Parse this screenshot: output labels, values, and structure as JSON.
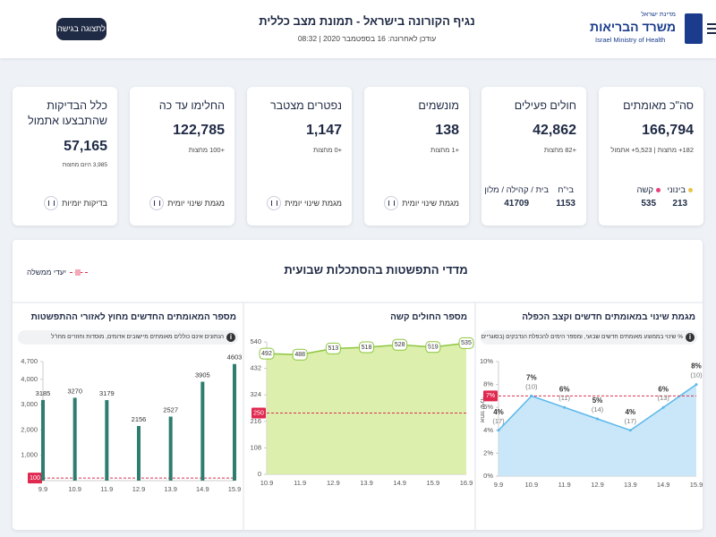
{
  "header": {
    "state": "מדינת ישראל",
    "ministry": "משרד הבריאות",
    "ministry_en": "Israel Ministry of Health",
    "title": "נגיף הקורונה בישראל - תמונת מצב כללית",
    "updated": "עודכן לאחרונה: 16 בספטמבר 2020 | 08:32",
    "button": "לתצוגה בגישה"
  },
  "cards": [
    {
      "title": "סה\"כ מאומתים",
      "value": "166,794",
      "change": "182+ מחצות | 5,523+ אתמול",
      "legend": [
        {
          "label": "בינוני",
          "value": "213"
        },
        {
          "label": "קשה",
          "value": "535"
        }
      ]
    },
    {
      "title": "חולים פעילים",
      "value": "42,862",
      "change": "+82 מחצות",
      "breakdown": [
        {
          "label": "בי\"ח",
          "value": "1153"
        },
        {
          "label": "בית / קהילה / מלון",
          "value": "41709"
        }
      ]
    },
    {
      "title": "מונשמים",
      "value": "138",
      "change": "+1 מחצות",
      "link": "מגמת שינוי יומית"
    },
    {
      "title": "נפטרים מצטבר",
      "value": "1,147",
      "change": "+0 מחצות",
      "link": "מגמת שינוי יומית"
    },
    {
      "title": "החלימו עד כה",
      "value": "122,785",
      "change": "+100 מחצות",
      "link": "מגמת שינוי יומית"
    },
    {
      "title": "כלל הבדיקות שהתבצעו אתמול",
      "value": "57,165",
      "change": "3,985 היום מחצות",
      "link": "בדיקות יומיות"
    }
  ],
  "section": {
    "title": "מדדי התפשטות בהסתכלות שבועית",
    "legend": "יעדי ממשלה"
  },
  "chart_data": [
    {
      "type": "line",
      "title": "מגמת שינוי במאומתים חדשים וקצב הכפלה",
      "info": "% שינוי בממוצע מאומתים חדשים שבועי, ומספר הימים להכפלת הנדבקים (בסוגריים)",
      "ylabel": "אחוז שינוי",
      "categories": [
        "9.9",
        "10.9",
        "11.9",
        "12.9",
        "13.9",
        "14.9",
        "15.9"
      ],
      "values": [
        4,
        7,
        6,
        5,
        4,
        6,
        8
      ],
      "value_labels": [
        "4%",
        "7%",
        "6%",
        "5%",
        "4%",
        "6%",
        "8%"
      ],
      "doubling_labels": [
        "(17)",
        "(10)",
        "(11)",
        "(14)",
        "(17)",
        "(13)",
        "(10)"
      ],
      "color": "#5bb8ea",
      "fill": "#bfe3f7",
      "ylim": [
        0,
        10
      ],
      "yticks": [
        {
          "value": 0,
          "label": "0%"
        },
        {
          "value": 2,
          "label": "2%"
        },
        {
          "value": 4,
          "label": "4%"
        },
        {
          "value": 6,
          "label": "6%"
        },
        {
          "value": 8,
          "label": "8%"
        },
        {
          "value": 10,
          "label": "10%"
        }
      ],
      "target": {
        "value": 7,
        "label": "7%"
      }
    },
    {
      "type": "line",
      "title": "מספר החולים קשה",
      "boxed_labels": true,
      "categories": [
        "10.9",
        "11.9",
        "12.9",
        "13.9",
        "14.9",
        "15.9",
        "16.9"
      ],
      "values": [
        492,
        488,
        513,
        518,
        528,
        519,
        535
      ],
      "color": "#8dc63f",
      "fill": "#d6ec9f",
      "ylim": [
        0,
        540
      ],
      "yticks": [
        0,
        108,
        216,
        324,
        432,
        540
      ],
      "target": 250
    },
    {
      "type": "bar",
      "title": "מספר המאומתים החדשים מחוץ לאזורי ההתפשטות",
      "info": "הנתונים אינם כוללים מאומתים מיישובים אדומים, מוסדות וחוזרים מחו\"ל",
      "categories": [
        "9.9",
        "10.9",
        "11.9",
        "12.9",
        "13.9",
        "14.9",
        "15.9"
      ],
      "values": [
        3185,
        3270,
        3179,
        2156,
        2527,
        3905,
        4603
      ],
      "color": "#2e7d6f",
      "ylim": [
        0,
        4700
      ],
      "yticks": [
        0,
        {
          "value": 1000,
          "label": "1,000"
        },
        {
          "value": 2000,
          "label": "2,000"
        },
        {
          "value": 3000,
          "label": "3,000"
        },
        {
          "value": 4000,
          "label": "4,000"
        },
        {
          "value": 4700,
          "label": "4,700"
        }
      ],
      "target": 100
    }
  ]
}
